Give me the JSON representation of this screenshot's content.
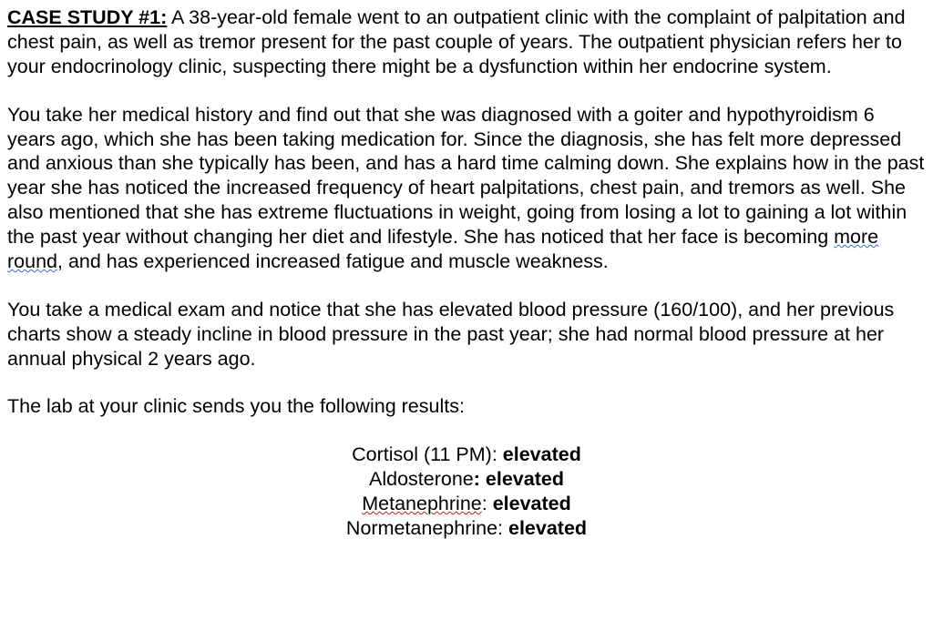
{
  "title_label": "CASE STUDY #1:",
  "p1_after_title": " A 38-year-old female went to an outpatient clinic with the complaint of palpitation and chest pain, as well as tremor present for the past couple of years. The outpatient physician refers her to your endocrinology clinic, suspecting there might be a dysfunction within her endocrine system.",
  "p2_a": "You take her medical history and find out that she was diagnosed with a goiter and hypothyroidism 6 years ago, which she has been taking medication for. Since the diagnosis, she has felt more depressed and anxious than she typically has been, and has a hard time calming down. She explains how in the past year she has noticed the increased frequency of heart palpitations, chest pain, and tremors as well. She also mentioned that she has extreme fluctuations in weight, going from losing a lot to gaining a lot within the past year without changing her diet and lifestyle. She has noticed that her face is becoming ",
  "p2_grammar": "more round",
  "p2_b": ", and has experienced increased fatigue and muscle weakness.",
  "p3": "You take a medical exam and notice that she has elevated blood pressure (160/100), and her previous charts show a steady incline in blood pressure in the past year; she had normal blood pressure at her annual physical 2 years ago.",
  "p4": "The lab at your clinic sends you the following results:",
  "results": {
    "r1_label": "Cortisol (11 PM): ",
    "r1_value": "elevated",
    "r2_label": "Aldosterone",
    "r2_sep": ": ",
    "r2_value": "elevated",
    "r3_label": "Metanephrine",
    "r3_sep": ": ",
    "r3_value": "elevated",
    "r4_label": "Normetanephrine: ",
    "r4_value": "elevated"
  }
}
